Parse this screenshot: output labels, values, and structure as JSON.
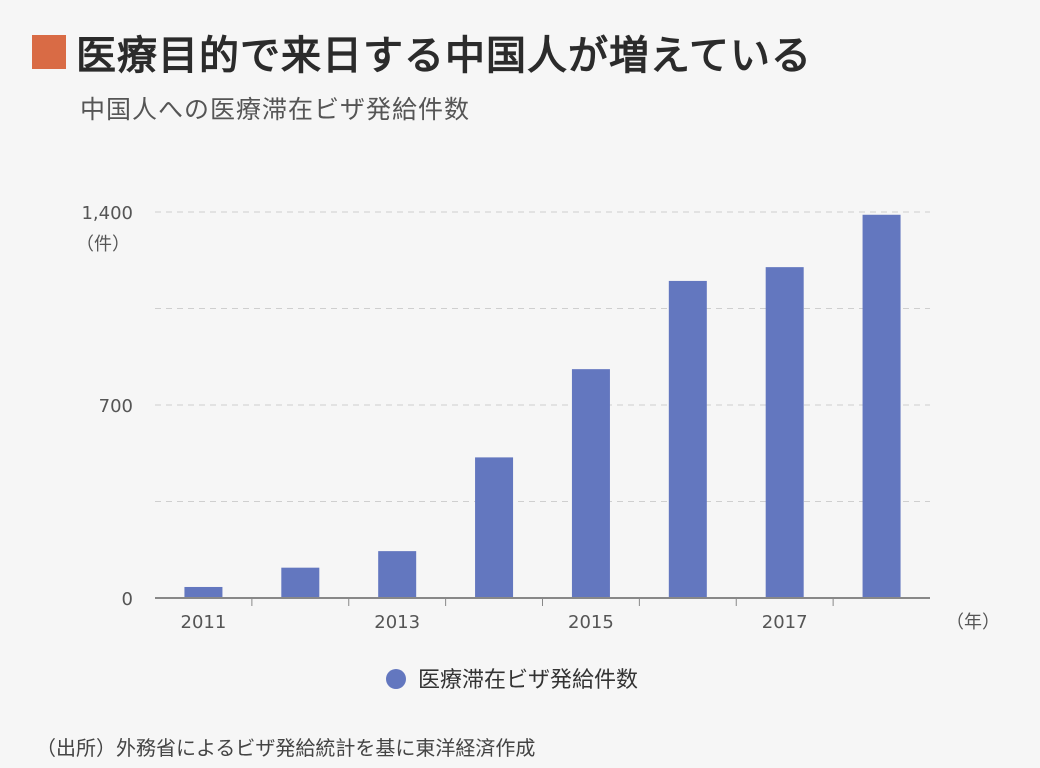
{
  "header": {
    "title": "医療目的で来日する中国人が増えている",
    "subtitle": "中国人への医療滞在ビザ発給件数",
    "accent_color": "#d96b45"
  },
  "chart_data": {
    "type": "bar",
    "categories": [
      "2011",
      "2012",
      "2013",
      "2014",
      "2015",
      "2016",
      "2017",
      "2018"
    ],
    "x_tick_labels": [
      "2011",
      "",
      "2013",
      "",
      "2015",
      "",
      "2017",
      ""
    ],
    "series": [
      {
        "values": [
          40,
          110,
          170,
          510,
          830,
          1150,
          1200,
          1390
        ]
      }
    ],
    "ylim": [
      0,
      1400
    ],
    "y_ticks": [
      0,
      700,
      1400
    ],
    "y_tick_labels": [
      "0",
      "700",
      "1,400"
    ],
    "y_unit": "（件）",
    "x_unit": "（年）",
    "legend": {
      "label": "医療滞在ビザ発給件数",
      "position": "bottom-center"
    },
    "bar_color": "#6377bf",
    "grid": true
  },
  "footer": {
    "source": "（出所）外務省によるビザ発給統計を基に東洋経済作成"
  }
}
